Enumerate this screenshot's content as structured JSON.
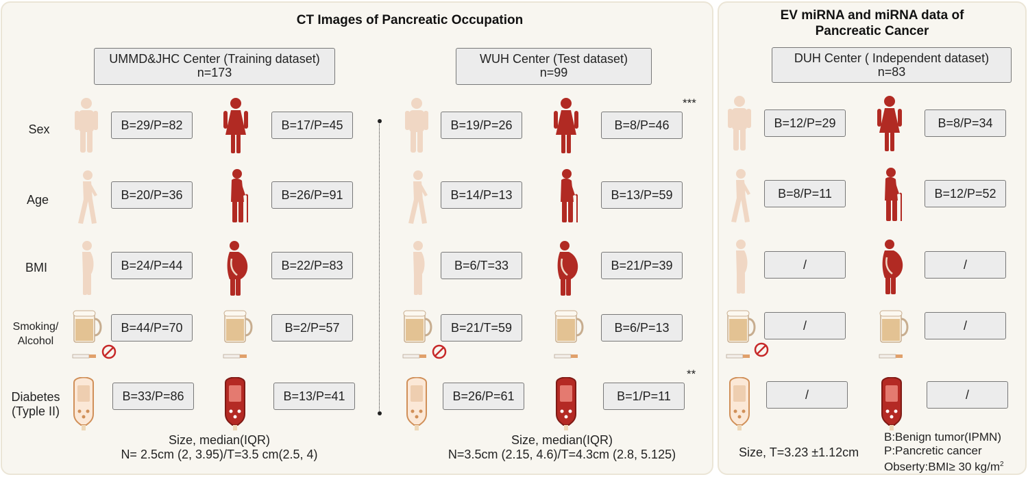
{
  "panels": {
    "ct_title": "CT Images of Pancreatic Occupation",
    "ev_title_line1": "EV miRNA and miRNA data of",
    "ev_title_line2": "Pancreatic Cancer"
  },
  "centers": [
    {
      "name": "UMMD&JHC Center (Training dataset)",
      "n": "n=173"
    },
    {
      "name": "WUH Center (Test dataset)",
      "n": "n=99"
    },
    {
      "name": "DUH Center ( Independent dataset)",
      "n": "n=83"
    }
  ],
  "rows": {
    "sex": "Sex",
    "age": "Age",
    "bmi": "BMI",
    "smoking_line1": "Smoking/",
    "smoking_line2": "Alcohol",
    "diabetes_line1": "Diabetes",
    "diabetes_line2": "(Typle II)"
  },
  "values": {
    "training": {
      "sex": [
        "B=29/P=82",
        "B=17/P=45"
      ],
      "age": [
        "B=20/P=36",
        "B=26/P=91"
      ],
      "bmi": [
        "B=24/P=44",
        "B=22/P=83"
      ],
      "smoking": [
        "B=44/P=70",
        "B=2/P=57"
      ],
      "diabetes": [
        "B=33/P=86",
        "B=13/P=41"
      ]
    },
    "test": {
      "sex": [
        "B=19/P=26",
        "B=8/P=46"
      ],
      "age": [
        "B=14/P=13",
        "B=13/P=59"
      ],
      "bmi": [
        "B=6/T=33",
        "B=21/P=39"
      ],
      "smoking": [
        "B=21/T=59",
        "B=6/P=13"
      ],
      "diabetes": [
        "B=26/P=61",
        "B=1/P=11"
      ]
    },
    "independent": {
      "sex": [
        "B=12/P=29",
        "B=8/P=34"
      ],
      "age": [
        "B=8/P=11",
        "B=12/P=52"
      ],
      "bmi": [
        "/",
        "/"
      ],
      "smoking": [
        "/",
        "/"
      ],
      "diabetes": [
        "/",
        "/"
      ]
    }
  },
  "significance": {
    "sex_test": "***",
    "diabetes_test": "**"
  },
  "sizes": {
    "training_line1": "Size, median(IQR)",
    "training_line2": "N= 2.5cm (2, 3.95)/T=3.5 cm(2.5, 4)",
    "test_line1": "Size, median(IQR)",
    "test_line2": "N=3.5cm (2.15, 4.6)/T=4.3cm (2.8, 5.125)",
    "independent": "Size, T=3.23 ±1.12cm"
  },
  "legend": {
    "benign": "B:Benign tumor(IPMN)",
    "pancreatic": "P:Pancretic cancer",
    "obesity_prefix": "Obserty:BMI≥ 30 kg/m",
    "obesity_sup": "2"
  },
  "colors": {
    "light_figure": "#f0d7c4",
    "dark_figure": "#b12a23",
    "panel_bg": "#f8f6f0",
    "box_bg": "#ececec"
  },
  "icons": {
    "light_person": "man-standing-icon",
    "dark_person": "woman-standing-icon",
    "young_walker": "walking-person-icon",
    "elderly": "elderly-with-cane-icon",
    "slim": "slim-person-icon",
    "obese": "obese-person-icon",
    "beer": "beer-mug-icon",
    "cigarette": "cigarette-icon",
    "no_sign": "prohibited-icon",
    "glucometer": "glucose-meter-icon"
  }
}
